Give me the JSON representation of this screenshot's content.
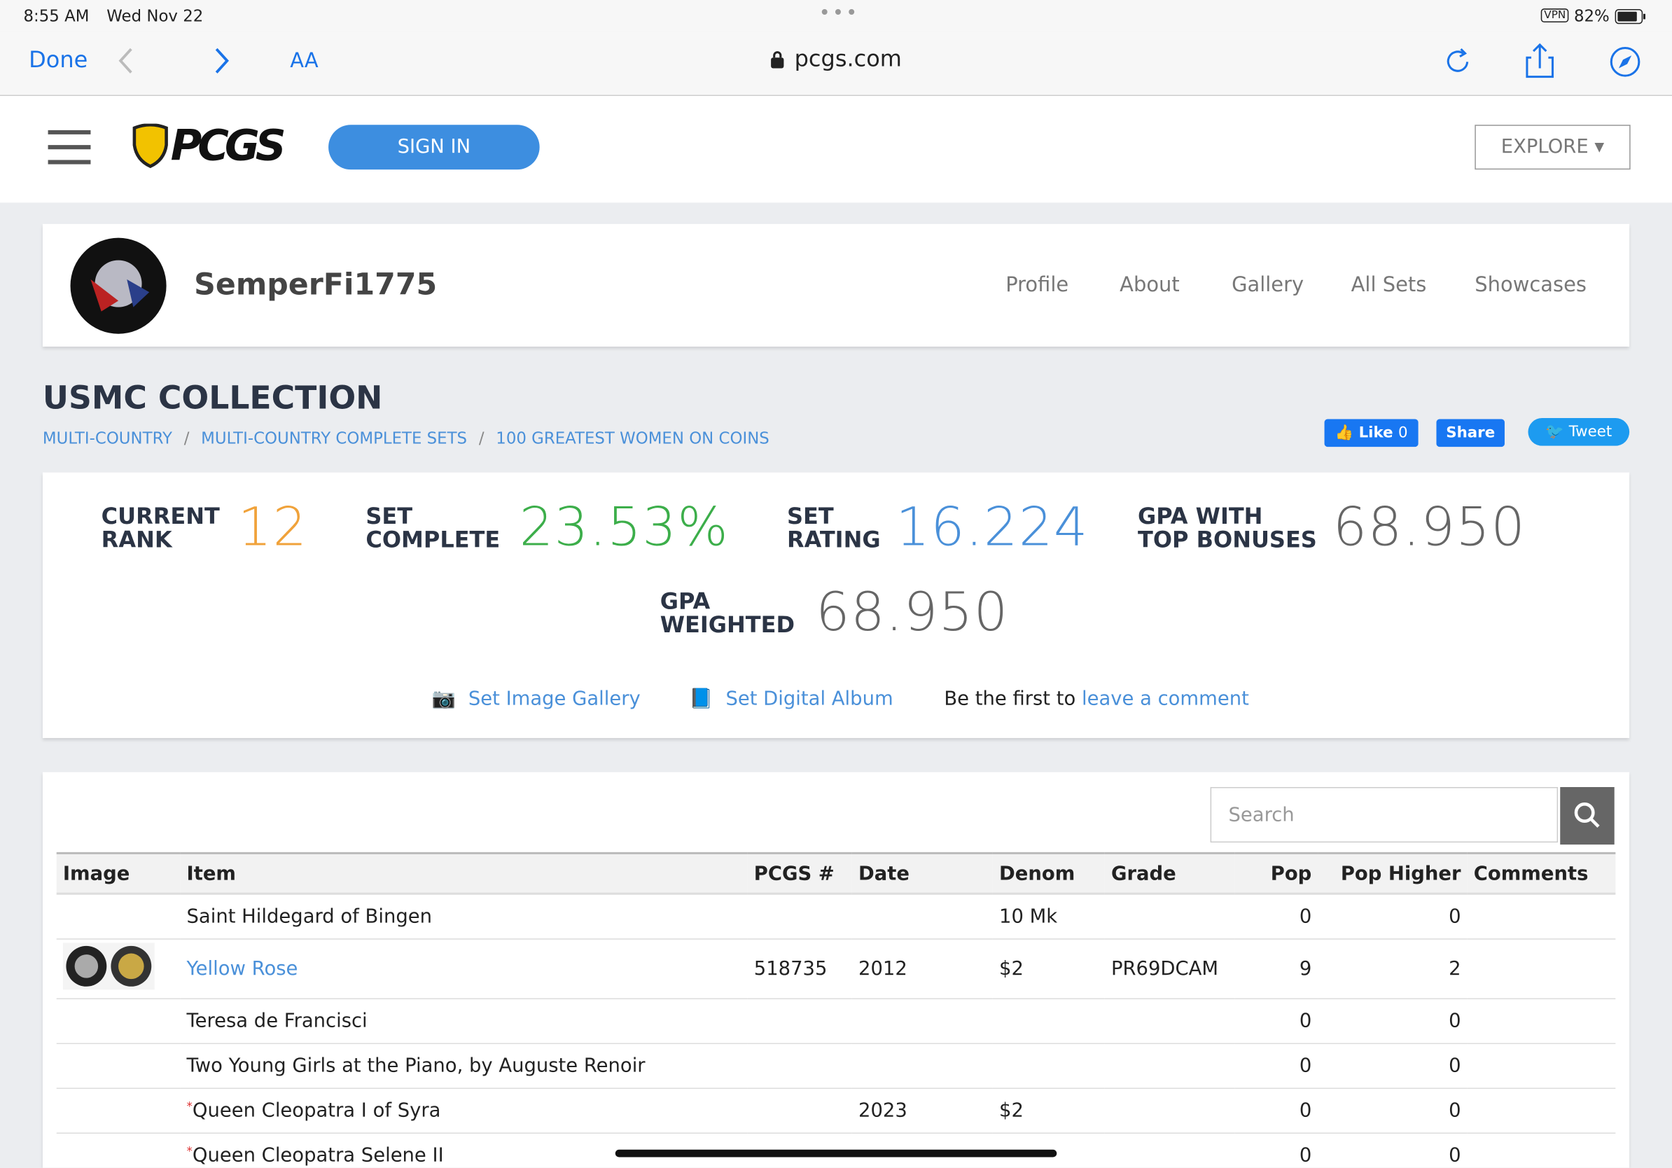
{
  "status_bar": {
    "time": "8:55 AM",
    "date": "Wed Nov 22",
    "vpn": "VPN",
    "battery": "82%"
  },
  "browser": {
    "done": "Done",
    "text_size": "AA",
    "url": "pcgs.com"
  },
  "header": {
    "logo": "PCGS",
    "sign_in": "SIGN IN",
    "explore": "EXPLORE"
  },
  "profile": {
    "username": "SemperFi1775",
    "nav": [
      "Profile",
      "About",
      "Gallery",
      "All Sets",
      "Showcases"
    ]
  },
  "set": {
    "title": "USMC COLLECTION",
    "breadcrumbs": [
      "MULTI-COUNTRY",
      "MULTI-COUNTRY COMPLETE SETS",
      "100 GREATEST WOMEN ON COINS"
    ],
    "social": {
      "like": "Like",
      "like_count": "0",
      "share": "Share",
      "tweet": "Tweet"
    }
  },
  "stats": [
    {
      "label": [
        "CURRENT",
        "RANK"
      ],
      "value": "12",
      "color": "#f0a23a"
    },
    {
      "label": [
        "SET",
        "COMPLETE"
      ],
      "value": "23.53%",
      "color": "#3cae4a"
    },
    {
      "label": [
        "SET",
        "RATING"
      ],
      "value": "16.224",
      "color": "#4a90d9"
    },
    {
      "label": [
        "GPA WITH",
        "TOP BONUSES"
      ],
      "value": "68.950",
      "color": "#666666"
    },
    {
      "label": [
        "GPA",
        "WEIGHTED"
      ],
      "value": "68.950",
      "color": "#666666"
    }
  ],
  "links": {
    "gallery": "Set Image Gallery",
    "album": "Set Digital Album",
    "comment_prefix": "Be the first to",
    "comment_link": "leave a comment"
  },
  "table": {
    "search_placeholder": "Search",
    "columns": [
      "Image",
      "Item",
      "PCGS #",
      "Date",
      "Denom",
      "Grade",
      "Pop",
      "Pop Higher",
      "Comments"
    ],
    "rows": [
      {
        "image": false,
        "mark": null,
        "item": "Saint Hildegard of Bingen",
        "link": false,
        "pcgs": null,
        "date": null,
        "denom": "10 Mk",
        "grade": null,
        "pop": "0",
        "pop_higher": "0"
      },
      {
        "image": true,
        "mark": null,
        "item": "Yellow Rose",
        "link": true,
        "pcgs": "518735",
        "date": "2012",
        "denom": "$2",
        "grade": "PR69DCAM",
        "pop": "9",
        "pop_higher": "2"
      },
      {
        "image": false,
        "mark": null,
        "item": "Teresa de Francisci",
        "link": false,
        "pcgs": null,
        "date": null,
        "denom": null,
        "grade": null,
        "pop": "0",
        "pop_higher": "0"
      },
      {
        "image": false,
        "mark": null,
        "item": "Two Young Girls at the Piano, by Auguste Renoir",
        "link": false,
        "pcgs": null,
        "date": null,
        "denom": null,
        "grade": null,
        "pop": "0",
        "pop_higher": "0"
      },
      {
        "image": false,
        "mark": "*",
        "item": "Queen Cleopatra I of Syra",
        "link": false,
        "pcgs": null,
        "date": "2023",
        "denom": "$2",
        "grade": null,
        "pop": "0",
        "pop_higher": "0"
      },
      {
        "image": false,
        "mark": "*",
        "item": "Queen Cleopatra Selene II",
        "link": false,
        "pcgs": null,
        "date": null,
        "denom": null,
        "grade": null,
        "pop": "0",
        "pop_higher": "0"
      }
    ]
  }
}
